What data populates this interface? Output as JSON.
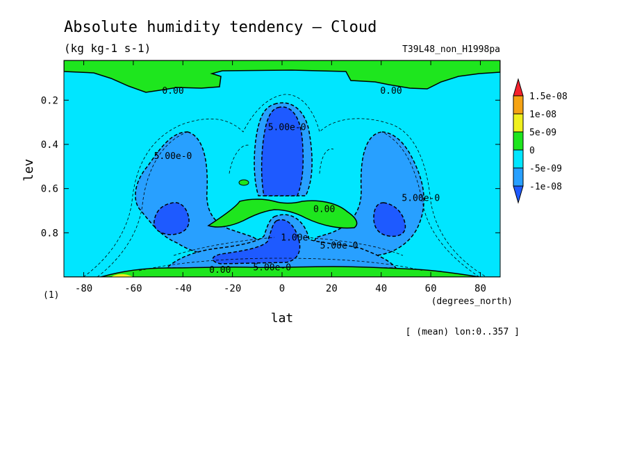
{
  "chart_data": {
    "type": "contour",
    "title": "Absolute humidity tendency — Cloud",
    "units": "(kg kg-1 s-1)",
    "experiment": "T39L48_non_H1998pa",
    "xlabel": "lat",
    "xunits": "(degrees_north)",
    "ylabel": "lev",
    "yunits": "(1)",
    "footnote": "[ (mean) lon:0..357 ]",
    "xlim": [
      -88,
      88
    ],
    "ylim": [
      1.0,
      0.02
    ],
    "x_ticks": [
      -80,
      -60,
      -40,
      -20,
      0,
      20,
      40,
      60,
      80
    ],
    "x_tick_labels": [
      "-80",
      "-60",
      "-40",
      "-20",
      "0",
      "20",
      "40",
      "60",
      "80"
    ],
    "y_ticks": [
      0.2,
      0.4,
      0.6,
      0.8
    ],
    "y_tick_labels": [
      "0.2",
      "0.4",
      "0.6",
      "0.8"
    ],
    "colorbar": {
      "levels": [
        "1.5e-08",
        "1e-08",
        "5e-09",
        "0",
        "-5e-09",
        "-1e-08"
      ],
      "colors": [
        "#f5222d",
        "#f5a314",
        "#f0f01e",
        "#1ee61e",
        "#00e6ff",
        "#28a0ff",
        "#1e5aff"
      ]
    },
    "contour_labels": [
      {
        "text": "0.00",
        "lat": -44,
        "lev": 0.155
      },
      {
        "text": "0.00",
        "lat": 44,
        "lev": 0.155
      },
      {
        "text": "5.00e-0",
        "lat": 2,
        "lev": 0.32
      },
      {
        "text": "5.00e-0",
        "lat": -44,
        "lev": 0.45
      },
      {
        "text": "5.00e-0",
        "lat": 56,
        "lev": 0.64
      },
      {
        "text": "0.00",
        "lat": 17,
        "lev": 0.69
      },
      {
        "text": "1.00e",
        "lat": 5,
        "lev": 0.82
      },
      {
        "text": "5.00e-0",
        "lat": 23,
        "lev": 0.855
      },
      {
        "text": "5.00e-0",
        "lat": -4,
        "lev": 0.955
      },
      {
        "text": "0.00",
        "lat": -25,
        "lev": 0.965
      }
    ]
  },
  "colors": {
    "green": "#1ee61e",
    "cyan": "#00e6ff",
    "lightblue": "#28a0ff",
    "blue": "#1e5aff",
    "yellow": "#f0f01e"
  }
}
